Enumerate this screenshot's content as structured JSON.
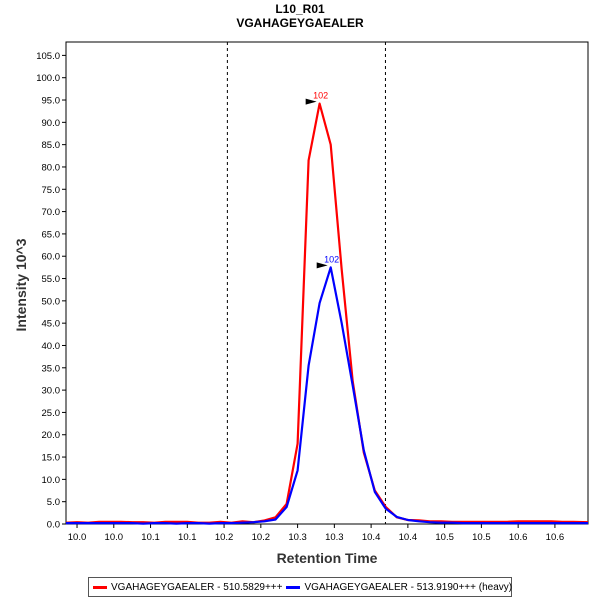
{
  "chart_data": {
    "type": "line",
    "title": "L10_R01",
    "subtitle": "VGAHAGEYGAEALER",
    "xlabel": "Retention Time",
    "ylabel": "Intensity 10^3",
    "xlim": [
      9.955,
      10.665
    ],
    "ylim": [
      0,
      108
    ],
    "y_ticks": [
      0.0,
      5.0,
      10.0,
      15.0,
      20.0,
      25.0,
      30.0,
      35.0,
      40.0,
      45.0,
      50.0,
      55.0,
      60.0,
      65.0,
      70.0,
      75.0,
      80.0,
      85.0,
      90.0,
      95.0,
      100.0,
      105.0
    ],
    "x_ticks": [
      {
        "value": 9.97,
        "label": "10.0"
      },
      {
        "value": 10.02,
        "label": "10.0"
      },
      {
        "value": 10.07,
        "label": "10.1"
      },
      {
        "value": 10.12,
        "label": "10.1"
      },
      {
        "value": 10.17,
        "label": "10.2"
      },
      {
        "value": 10.22,
        "label": "10.2"
      },
      {
        "value": 10.27,
        "label": "10.3"
      },
      {
        "value": 10.32,
        "label": "10.3"
      },
      {
        "value": 10.37,
        "label": "10.4"
      },
      {
        "value": 10.42,
        "label": "10.4"
      },
      {
        "value": 10.47,
        "label": "10.5"
      },
      {
        "value": 10.52,
        "label": "10.5"
      },
      {
        "value": 10.57,
        "label": "10.6"
      },
      {
        "value": 10.62,
        "label": "10.6"
      }
    ],
    "boundaries": [
      10.1745,
      10.3895
    ],
    "legend_position": "bottom",
    "grid": false,
    "series": [
      {
        "name": "VGAHAGEYGAEALER - 510.5829+++",
        "color": "#ff0000",
        "peak_label": "102",
        "x": [
          9.955,
          9.97,
          9.985,
          10.0,
          10.015,
          10.03,
          10.045,
          10.06,
          10.075,
          10.09,
          10.105,
          10.12,
          10.135,
          10.15,
          10.165,
          10.18,
          10.195,
          10.21,
          10.225,
          10.24,
          10.255,
          10.27,
          10.285,
          10.3,
          10.315,
          10.33,
          10.345,
          10.36,
          10.375,
          10.39,
          10.405,
          10.42,
          10.435,
          10.45,
          10.465,
          10.48,
          10.495,
          10.51,
          10.525,
          10.54,
          10.555,
          10.57,
          10.585,
          10.6,
          10.615,
          10.63,
          10.645,
          10.665
        ],
        "values": [
          0.3,
          0.4,
          0.3,
          0.5,
          0.5,
          0.5,
          0.4,
          0.4,
          0.3,
          0.5,
          0.5,
          0.5,
          0.3,
          0.3,
          0.5,
          0.3,
          0.6,
          0.4,
          0.8,
          1.5,
          4.5,
          18.0,
          81.5,
          94.2,
          85.0,
          57.0,
          32.0,
          16.0,
          7.5,
          3.8,
          1.5,
          0.9,
          0.8,
          0.6,
          0.6,
          0.5,
          0.5,
          0.5,
          0.5,
          0.5,
          0.5,
          0.6,
          0.6,
          0.6,
          0.6,
          0.5,
          0.5,
          0.4
        ]
      },
      {
        "name": "VGAHAGEYGAEALER - 513.9190+++ (heavy)",
        "color": "#0000ff",
        "peak_label": "102",
        "x": [
          9.955,
          9.97,
          9.985,
          10.0,
          10.015,
          10.03,
          10.045,
          10.06,
          10.075,
          10.09,
          10.105,
          10.12,
          10.135,
          10.15,
          10.165,
          10.18,
          10.195,
          10.21,
          10.225,
          10.24,
          10.255,
          10.27,
          10.285,
          10.3,
          10.315,
          10.33,
          10.345,
          10.36,
          10.375,
          10.39,
          10.405,
          10.42,
          10.435,
          10.45,
          10.465,
          10.48,
          10.495,
          10.51,
          10.525,
          10.54,
          10.555,
          10.57,
          10.585,
          10.6,
          10.615,
          10.63,
          10.645,
          10.665
        ],
        "values": [
          0.2,
          0.2,
          0.2,
          0.2,
          0.2,
          0.2,
          0.2,
          0.1,
          0.2,
          0.2,
          0.1,
          0.2,
          0.2,
          0.1,
          0.2,
          0.2,
          0.3,
          0.4,
          0.6,
          1.0,
          3.8,
          12.0,
          35.5,
          49.5,
          57.5,
          45.0,
          31.0,
          16.5,
          7.2,
          3.4,
          1.6,
          0.9,
          0.6,
          0.4,
          0.3,
          0.3,
          0.2,
          0.2,
          0.2,
          0.2,
          0.2,
          0.2,
          0.2,
          0.2,
          0.2,
          0.2,
          0.2,
          0.2
        ]
      }
    ]
  }
}
